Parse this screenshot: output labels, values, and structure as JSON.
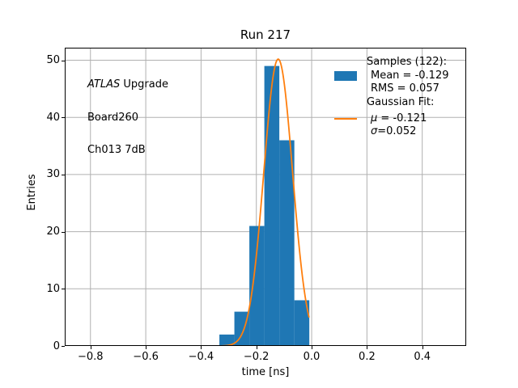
{
  "figure": {
    "background": "#ffffff"
  },
  "annotation": {
    "line1_italic": "ATLAS",
    "line1_rest": " Upgrade",
    "line2": "Board260",
    "line3": "Ch013 7dB"
  },
  "legend": {
    "samples_header": "Samples (122):",
    "mean_label": "Mean = -0.129",
    "rms_label": "RMS = 0.057",
    "fit_header": "Gaussian Fit:",
    "mu_symbol": "μ",
    "mu_rest": " = -0.121",
    "sigma_symbol": "σ",
    "sigma_rest": "=0.052"
  },
  "colors": {
    "histogram": "#1f77b4",
    "fit_line": "#ff7f0e",
    "grid": "#b0b0b0",
    "spine": "#000000",
    "tick": "#000000"
  },
  "chart_data": {
    "type": "bar",
    "subtype": "histogram-with-gaussian-fit",
    "title": "Run 217",
    "xlabel": "time [ns]",
    "ylabel": "Entries",
    "xlim": [
      -0.893,
      0.559
    ],
    "ylim": [
      0,
      52.2
    ],
    "grid": true,
    "legend_position": "upper right",
    "xticks": {
      "values": [
        -0.8,
        -0.6,
        -0.4,
        -0.2,
        0.0,
        0.2,
        0.4
      ],
      "labels": [
        "−0.8",
        "−0.6",
        "−0.4",
        "−0.2",
        "0.0",
        "0.2",
        "0.4"
      ]
    },
    "yticks": {
      "values": [
        0,
        10,
        20,
        30,
        40,
        50
      ],
      "labels": [
        "0",
        "10",
        "20",
        "30",
        "40",
        "50"
      ]
    },
    "histogram": {
      "name": "Samples",
      "total_entries": 122,
      "mean": -0.129,
      "rms": 0.057,
      "bin_edges": [
        -0.3337,
        -0.2795,
        -0.2253,
        -0.1711,
        -0.1169,
        -0.0626,
        -0.0084
      ],
      "counts": [
        2,
        6,
        21,
        49,
        36,
        8
      ]
    },
    "gaussian_fit": {
      "name": "Gaussian Fit",
      "amplitude": 50.2,
      "mu": -0.121,
      "sigma": 0.052,
      "x_range": [
        -0.3337,
        -0.0084
      ]
    }
  }
}
